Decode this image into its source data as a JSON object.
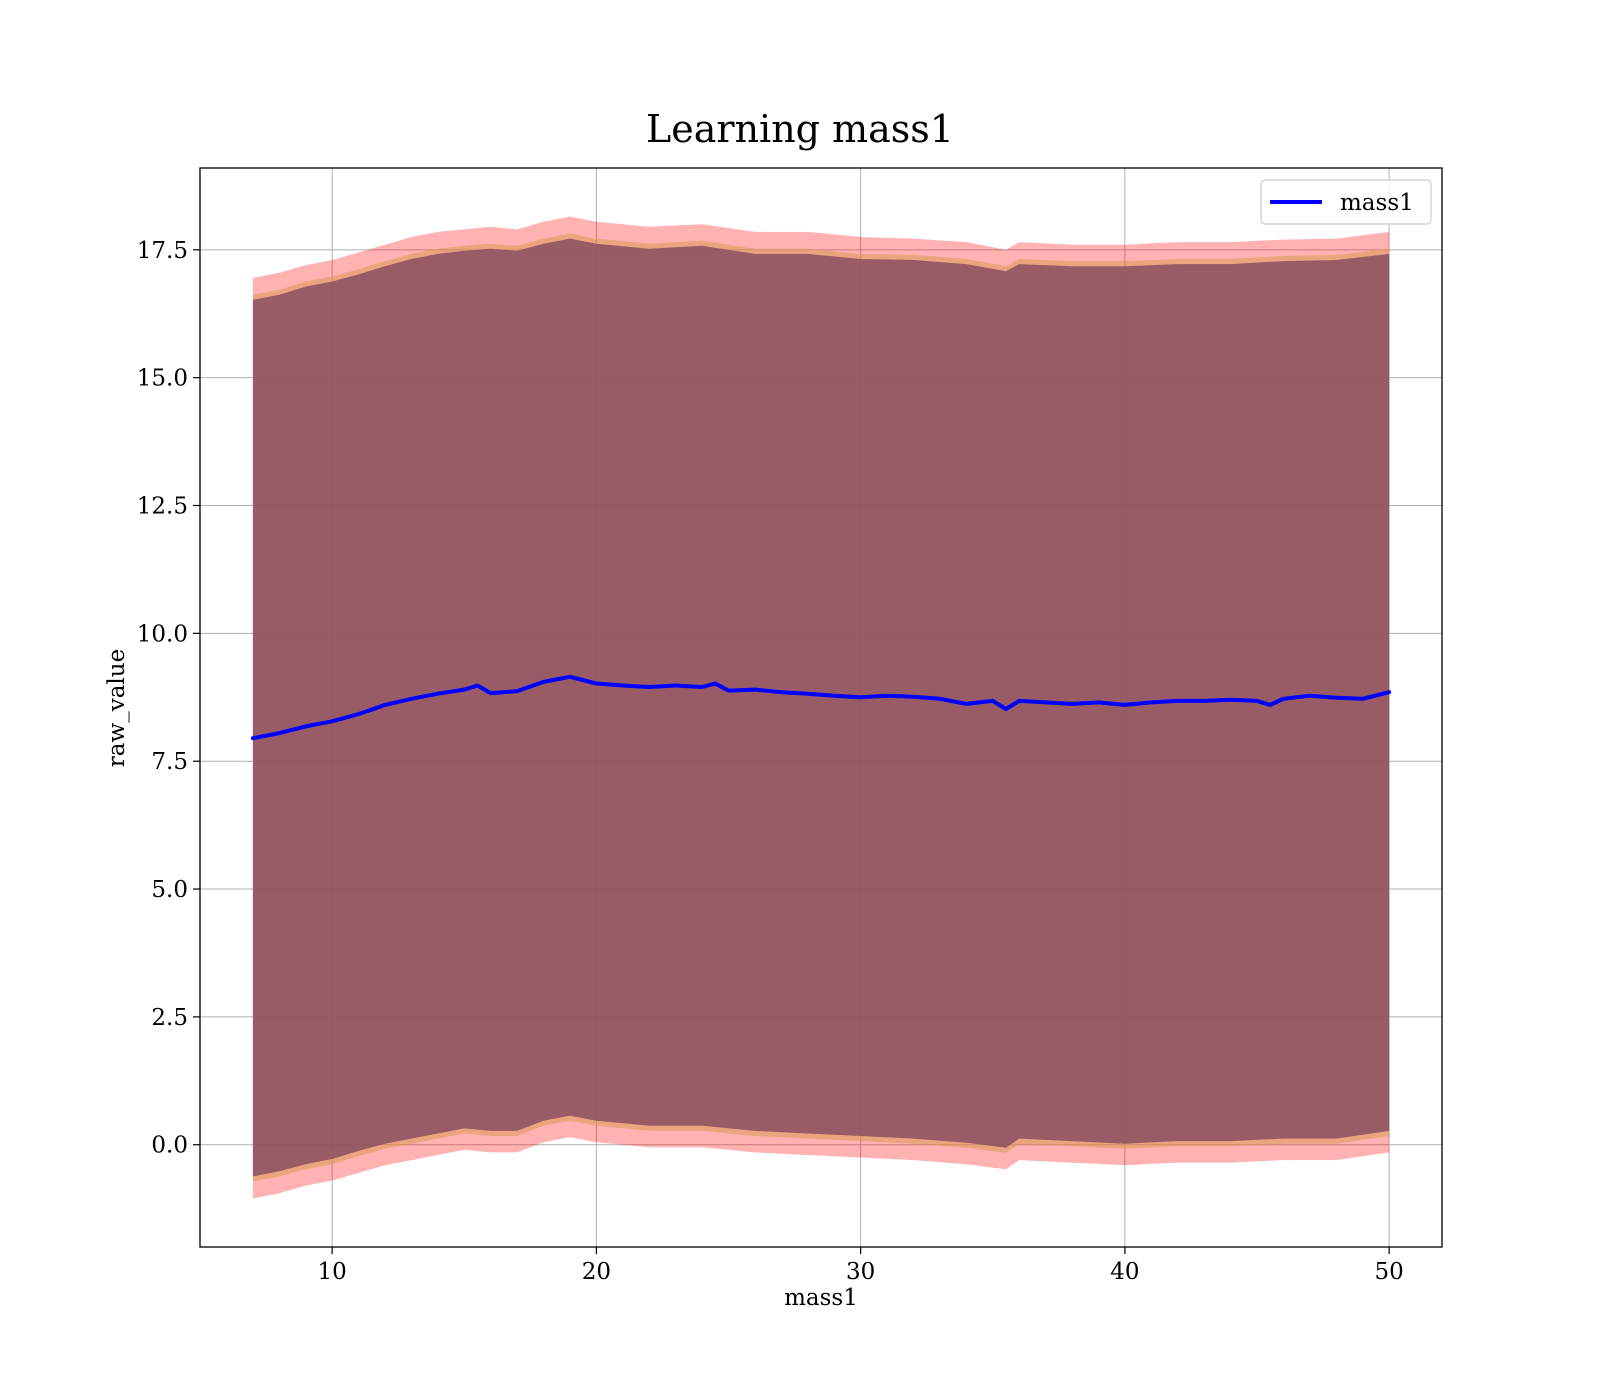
{
  "chart_data": {
    "type": "area",
    "title": "Learning mass1",
    "xlabel": "mass1",
    "ylabel": "raw_value",
    "xlim": [
      5,
      52
    ],
    "ylim": [
      -2.0,
      19.1
    ],
    "xticks": [
      10,
      20,
      30,
      40,
      50
    ],
    "xtick_labels": [
      "10",
      "20",
      "30",
      "40",
      "50"
    ],
    "yticks": [
      0.0,
      2.5,
      5.0,
      7.5,
      10.0,
      12.5,
      15.0,
      17.5
    ],
    "ytick_labels": [
      "0.0",
      "2.5",
      "5.0",
      "7.5",
      "10.0",
      "12.5",
      "15.0",
      "17.5"
    ],
    "grid": true,
    "legend": {
      "position": "upper right",
      "entries": [
        "mass1"
      ]
    },
    "series": [
      {
        "name": "mass1",
        "role": "line",
        "color": "#0000ff",
        "x": [
          7.0,
          8.0,
          9.0,
          10.0,
          11.0,
          12.0,
          13.0,
          14.0,
          15.0,
          15.5,
          16.0,
          17.0,
          18.0,
          19.0,
          20.0,
          21.0,
          22.0,
          23.0,
          24.0,
          24.5,
          25.0,
          26.0,
          27.0,
          28.0,
          29.0,
          30.0,
          31.0,
          32.0,
          33.0,
          34.0,
          35.0,
          35.5,
          36.0,
          37.0,
          38.0,
          39.0,
          40.0,
          41.0,
          42.0,
          43.0,
          44.0,
          45.0,
          45.5,
          46.0,
          47.0,
          48.0,
          49.0,
          50.0
        ],
        "y": [
          7.95,
          8.05,
          8.18,
          8.28,
          8.42,
          8.6,
          8.72,
          8.82,
          8.9,
          8.98,
          8.83,
          8.87,
          9.05,
          9.15,
          9.02,
          8.98,
          8.95,
          8.98,
          8.95,
          9.02,
          8.88,
          8.9,
          8.85,
          8.82,
          8.78,
          8.75,
          8.78,
          8.76,
          8.72,
          8.62,
          8.68,
          8.52,
          8.68,
          8.65,
          8.62,
          8.65,
          8.6,
          8.65,
          8.68,
          8.68,
          8.7,
          8.68,
          8.6,
          8.72,
          8.78,
          8.74,
          8.72,
          8.85
        ]
      },
      {
        "name": "",
        "role": "outer band",
        "color": "#ff0000",
        "opacity": 0.3,
        "x": [
          7.0,
          8.0,
          9.0,
          10.0,
          11.0,
          12.0,
          13.0,
          14.0,
          15.0,
          16.0,
          17.0,
          18.0,
          19.0,
          20.0,
          22.0,
          24.0,
          26.0,
          28.0,
          30.0,
          32.0,
          34.0,
          35.5,
          36.0,
          38.0,
          40.0,
          42.0,
          44.0,
          46.0,
          48.0,
          50.0
        ],
        "upper": [
          16.95,
          17.05,
          17.2,
          17.3,
          17.45,
          17.6,
          17.75,
          17.85,
          17.9,
          17.95,
          17.9,
          18.05,
          18.15,
          18.05,
          17.95,
          18.0,
          17.85,
          17.85,
          17.75,
          17.72,
          17.65,
          17.5,
          17.65,
          17.6,
          17.6,
          17.65,
          17.65,
          17.7,
          17.72,
          17.85
        ],
        "lower": [
          -1.05,
          -0.95,
          -0.8,
          -0.7,
          -0.55,
          -0.4,
          -0.3,
          -0.2,
          -0.1,
          -0.15,
          -0.15,
          0.05,
          0.15,
          0.05,
          -0.05,
          -0.05,
          -0.15,
          -0.2,
          -0.25,
          -0.3,
          -0.38,
          -0.48,
          -0.3,
          -0.35,
          -0.4,
          -0.35,
          -0.35,
          -0.3,
          -0.3,
          -0.15
        ]
      },
      {
        "name": "",
        "role": "middle band",
        "color": "#d89a55",
        "opacity": 0.55,
        "x": [
          7.0,
          8.0,
          9.0,
          10.0,
          11.0,
          12.0,
          13.0,
          14.0,
          15.0,
          16.0,
          17.0,
          18.0,
          19.0,
          20.0,
          22.0,
          24.0,
          26.0,
          28.0,
          30.0,
          32.0,
          34.0,
          35.5,
          36.0,
          38.0,
          40.0,
          42.0,
          44.0,
          46.0,
          48.0,
          50.0
        ],
        "upper": [
          16.62,
          16.72,
          16.88,
          16.98,
          17.12,
          17.28,
          17.42,
          17.52,
          17.58,
          17.62,
          17.58,
          17.72,
          17.82,
          17.72,
          17.62,
          17.68,
          17.52,
          17.52,
          17.42,
          17.4,
          17.32,
          17.18,
          17.32,
          17.28,
          17.28,
          17.32,
          17.32,
          17.38,
          17.4,
          17.52
        ],
        "lower": [
          -0.72,
          -0.62,
          -0.48,
          -0.38,
          -0.22,
          -0.08,
          0.02,
          0.12,
          0.22,
          0.17,
          0.17,
          0.37,
          0.47,
          0.37,
          0.27,
          0.27,
          0.17,
          0.12,
          0.07,
          0.02,
          -0.06,
          -0.16,
          0.02,
          -0.03,
          -0.08,
          -0.03,
          -0.03,
          0.02,
          0.02,
          0.17
        ]
      },
      {
        "name": "",
        "role": "inner band",
        "color": "#8b4f62",
        "opacity": 0.85,
        "x": [
          7.0,
          8.0,
          9.0,
          10.0,
          11.0,
          12.0,
          13.0,
          14.0,
          15.0,
          16.0,
          17.0,
          18.0,
          19.0,
          20.0,
          22.0,
          24.0,
          26.0,
          28.0,
          30.0,
          32.0,
          34.0,
          35.5,
          36.0,
          38.0,
          40.0,
          42.0,
          44.0,
          46.0,
          48.0,
          50.0
        ],
        "upper": [
          16.52,
          16.62,
          16.78,
          16.88,
          17.02,
          17.18,
          17.32,
          17.42,
          17.48,
          17.52,
          17.48,
          17.62,
          17.72,
          17.62,
          17.52,
          17.58,
          17.42,
          17.42,
          17.32,
          17.3,
          17.22,
          17.08,
          17.22,
          17.18,
          17.18,
          17.22,
          17.22,
          17.28,
          17.3,
          17.42
        ],
        "lower": [
          -0.62,
          -0.52,
          -0.38,
          -0.28,
          -0.12,
          0.02,
          0.12,
          0.22,
          0.32,
          0.27,
          0.27,
          0.47,
          0.57,
          0.47,
          0.37,
          0.37,
          0.27,
          0.22,
          0.17,
          0.12,
          0.04,
          -0.06,
          0.12,
          0.07,
          0.02,
          0.07,
          0.07,
          0.12,
          0.12,
          0.27
        ]
      }
    ]
  }
}
